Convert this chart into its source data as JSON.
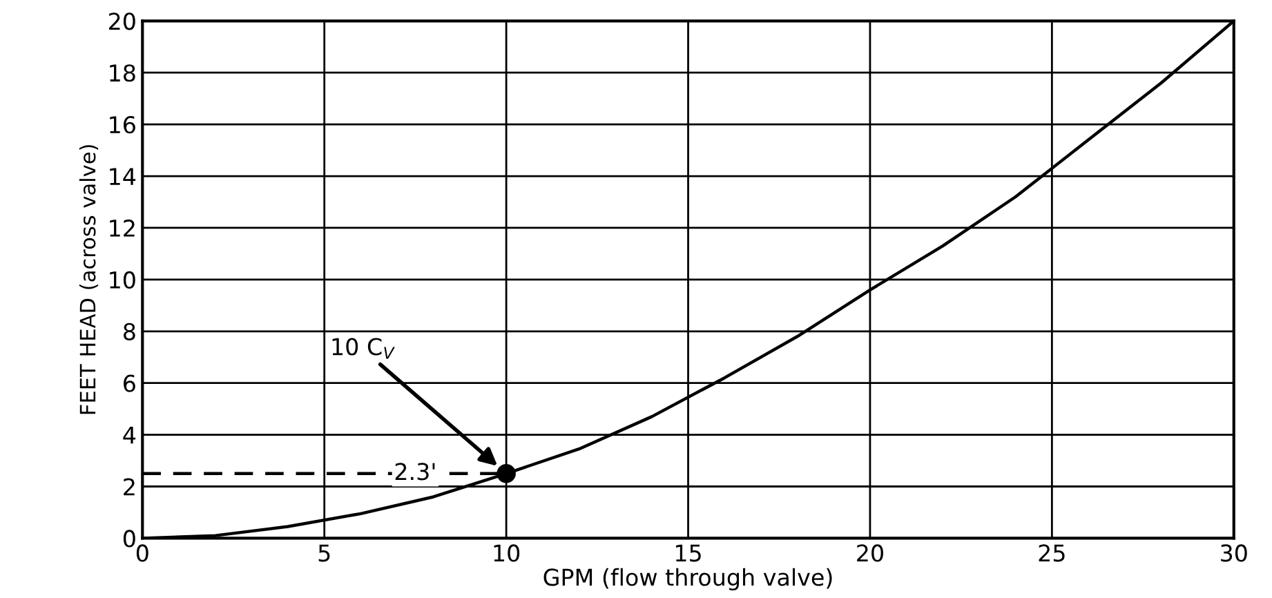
{
  "chart_data": {
    "type": "line",
    "xlabel": "GPM (flow through valve)",
    "ylabel": "FEET HEAD (across valve)",
    "xlim": [
      0,
      30
    ],
    "ylim": [
      0,
      20
    ],
    "xticks": [
      0,
      5,
      10,
      15,
      20,
      25,
      30
    ],
    "yticks": [
      0,
      2,
      4,
      6,
      8,
      10,
      12,
      14,
      16,
      18,
      20
    ],
    "grid": true,
    "legend": false,
    "series": [
      {
        "color": "#000000",
        "x": [
          0,
          2,
          4,
          6,
          8,
          10,
          12,
          14,
          16,
          18,
          20,
          22,
          24,
          26,
          28,
          30
        ],
        "values": [
          0,
          0.1,
          0.45,
          0.95,
          1.6,
          2.5,
          3.45,
          4.7,
          6.2,
          7.8,
          9.6,
          11.3,
          13.2,
          15.4,
          17.6,
          20
        ],
        "marker": "none",
        "line_style": "solid"
      },
      {
        "color": "#000000",
        "x": [
          0,
          10
        ],
        "values": [
          2.5,
          2.5
        ],
        "marker": "none",
        "line_style": "dashed"
      },
      {
        "type": "scatter",
        "color": "#000000",
        "x": [
          10
        ],
        "values": [
          2.5
        ],
        "marker": "circle"
      }
    ],
    "annotations": [
      {
        "text": "2.3'",
        "x": 7.5,
        "y": 2.5
      },
      "10 C$_{V}$"
    ]
  }
}
